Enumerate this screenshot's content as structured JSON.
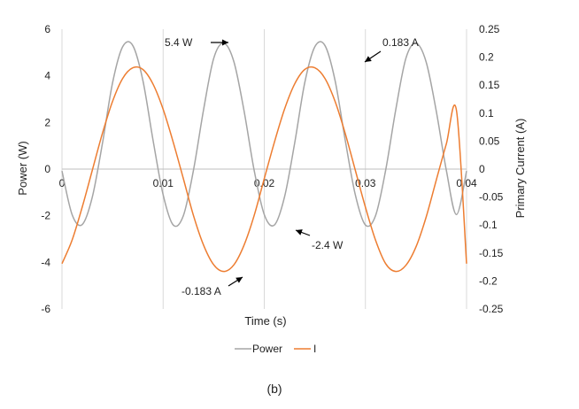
{
  "chart_data": {
    "type": "line",
    "xlabel": "Time (s)",
    "ylabel_left": "Power (W)",
    "ylabel_right": "Primary Current (A)",
    "caption": "(b)",
    "xlim": [
      0,
      0.04
    ],
    "ylim_left": [
      -6,
      6
    ],
    "ylim_right": [
      -0.25,
      0.25
    ],
    "x_ticks": [
      0,
      0.01,
      0.02,
      0.03,
      0.04
    ],
    "x_tick_labels": [
      "0",
      "0.01",
      "0.02",
      "0.03",
      "0.04"
    ],
    "y_left_ticks": [
      -6,
      -4,
      -2,
      0,
      2,
      4,
      6
    ],
    "y_left_tick_labels": [
      "-6",
      "-4",
      "-2",
      "0",
      "2",
      "4",
      "6"
    ],
    "y_right_ticks": [
      -0.25,
      -0.2,
      -0.15,
      -0.1,
      -0.05,
      0,
      0.05,
      0.1,
      0.15,
      0.2,
      0.25
    ],
    "y_right_tick_labels": [
      "-0.25",
      "-0.2",
      "-0.15",
      "-0.1",
      "-0.05",
      "0",
      "0.05",
      "0.1",
      "0.15",
      "0.2",
      "0.25"
    ],
    "grid": "vertical",
    "legend_position": "bottom",
    "series": [
      {
        "name": "Power",
        "axis": "left",
        "color": "#a5a5a5",
        "x": [
          0,
          0.001,
          0.002,
          0.003,
          0.004,
          0.005,
          0.006,
          0.007,
          0.008,
          0.009,
          0.01,
          0.011,
          0.012,
          0.013,
          0.014,
          0.015,
          0.016,
          0.017,
          0.018,
          0.019,
          0.02,
          0.021,
          0.022,
          0.023,
          0.024,
          0.025,
          0.026,
          0.027,
          0.028,
          0.029,
          0.03,
          0.031,
          0.032,
          0.033,
          0.034,
          0.035,
          0.036,
          0.037,
          0.038,
          0.039,
          0.04
        ],
        "values": [
          -0.08,
          -1.95,
          -2.38,
          -1.2,
          1.1,
          3.7,
          5.25,
          5.3,
          3.8,
          1.25,
          -1.1,
          -2.4,
          -2.0,
          -0.05,
          2.55,
          4.75,
          5.4,
          4.6,
          2.5,
          -0.05,
          -1.95,
          -2.4,
          -1.2,
          1.1,
          3.7,
          5.25,
          5.3,
          3.8,
          1.25,
          -1.1,
          -2.4,
          -2.0,
          -0.05,
          2.55,
          4.75,
          5.4,
          4.6,
          2.5,
          -0.05,
          -1.95,
          -0.08
        ]
      },
      {
        "name": "I",
        "axis": "right",
        "color": "#ed7d31",
        "x": [
          0,
          0.001,
          0.002,
          0.003,
          0.004,
          0.005,
          0.006,
          0.007,
          0.008,
          0.009,
          0.01,
          0.011,
          0.012,
          0.013,
          0.014,
          0.015,
          0.016,
          0.017,
          0.018,
          0.019,
          0.02,
          0.021,
          0.022,
          0.023,
          0.024,
          0.025,
          0.026,
          0.027,
          0.028,
          0.029,
          0.03,
          0.031,
          0.032,
          0.033,
          0.034,
          0.035,
          0.036,
          0.037,
          0.038,
          0.039,
          0.04
        ],
        "values": [
          -0.169,
          -0.127,
          -0.068,
          -0.002,
          0.064,
          0.121,
          0.162,
          0.181,
          0.178,
          0.152,
          0.107,
          0.048,
          -0.017,
          -0.083,
          -0.136,
          -0.171,
          -0.183,
          -0.171,
          -0.136,
          -0.083,
          -0.017,
          0.048,
          0.107,
          0.152,
          0.178,
          0.181,
          0.162,
          0.121,
          0.064,
          -0.002,
          -0.068,
          -0.127,
          -0.169,
          -0.183,
          -0.172,
          -0.139,
          -0.086,
          -0.02,
          0.045,
          0.105,
          -0.169
        ]
      }
    ],
    "annotations": [
      {
        "text": "5.4 W",
        "x": 0.0158,
        "y_left": 5.4
      },
      {
        "text": "0.183 A",
        "x": 0.0295,
        "y_left": 4.5
      },
      {
        "text": "-2.4 W",
        "x": 0.0225,
        "y_left": -2.4
      },
      {
        "text": "-0.183 A",
        "x": 0.018,
        "y_left": -4.4
      }
    ]
  }
}
